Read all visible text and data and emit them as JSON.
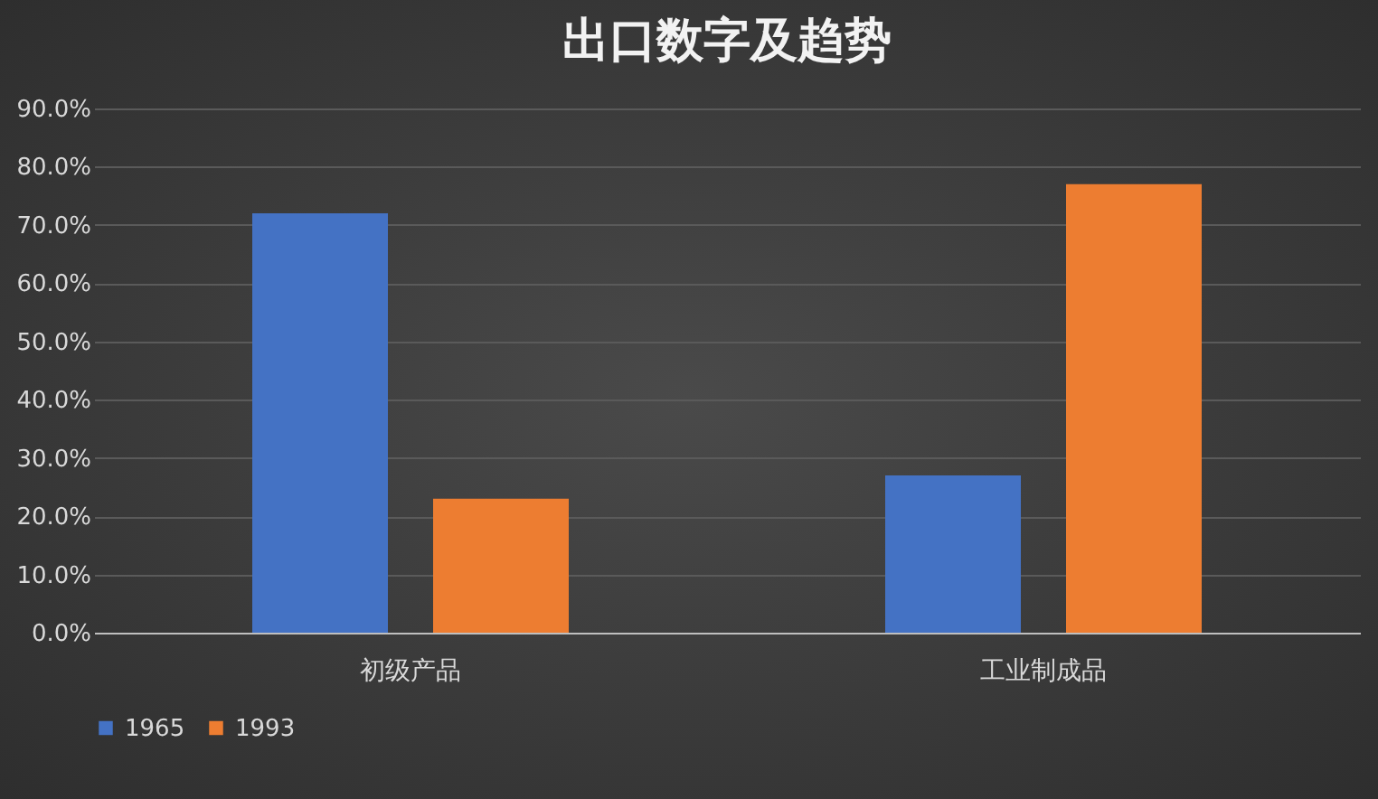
{
  "chart_data": {
    "type": "bar",
    "title": "出口数字及趋势",
    "categories": [
      "初级产品",
      "工业制成品"
    ],
    "series": [
      {
        "name": "1965",
        "color": "#4472c4",
        "values": [
          72,
          27
        ]
      },
      {
        "name": "1993",
        "color": "#ed7d31",
        "values": [
          23,
          77
        ]
      }
    ],
    "ylim": [
      0,
      90
    ],
    "yticks": [
      {
        "value": 0,
        "label": "0.0%"
      },
      {
        "value": 10,
        "label": "10.0%"
      },
      {
        "value": 20,
        "label": "20.0%"
      },
      {
        "value": 30,
        "label": "30.0%"
      },
      {
        "value": 40,
        "label": "40.0%"
      },
      {
        "value": 50,
        "label": "50.0%"
      },
      {
        "value": 60,
        "label": "60.0%"
      },
      {
        "value": 70,
        "label": "70.0%"
      },
      {
        "value": 80,
        "label": "80.0%"
      },
      {
        "value": 90,
        "label": "90.0%"
      }
    ],
    "grid": "y",
    "legend": "bottom"
  }
}
